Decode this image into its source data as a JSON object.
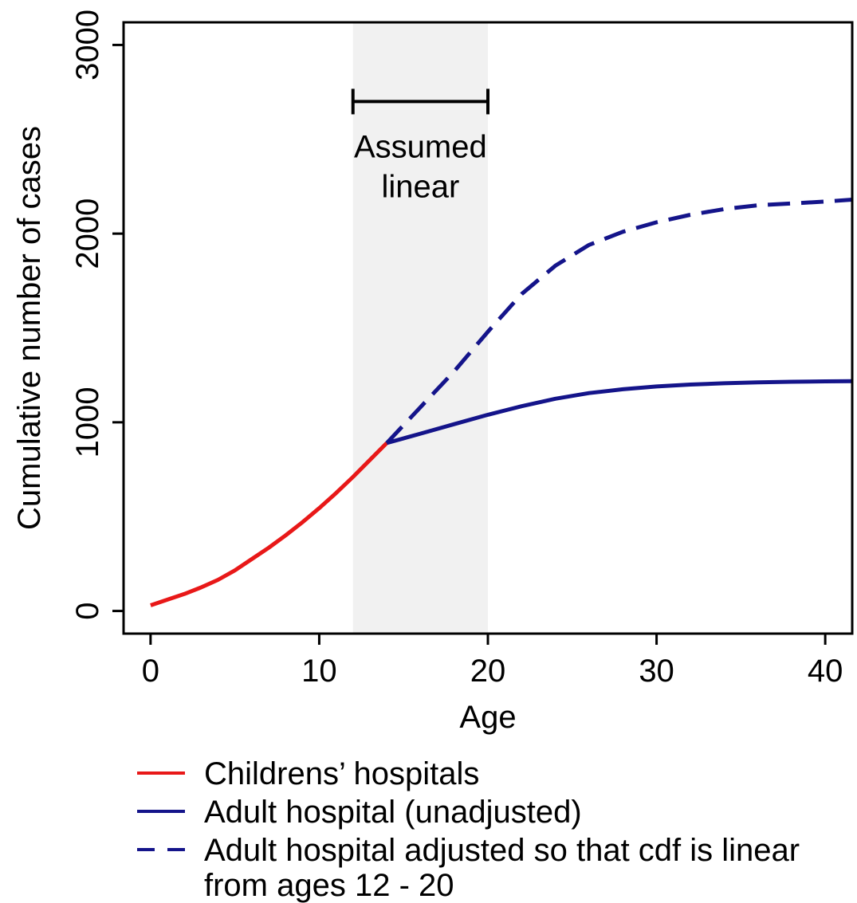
{
  "chart_data": {
    "type": "line",
    "title": "",
    "xlabel": "Age",
    "ylabel": "Cumulative number of cases",
    "xlim": [
      -1.6,
      41.6
    ],
    "ylim": [
      -120,
      3120
    ],
    "x_ticks": [
      0,
      10,
      20,
      30,
      40
    ],
    "y_ticks": [
      0,
      1000,
      2000,
      3000
    ],
    "grid": false,
    "shaded_region": {
      "x_start": 12,
      "x_end": 20,
      "color": "#f1f1f1"
    },
    "annotation": {
      "lines": [
        "Assumed",
        "linear"
      ],
      "bracket_x": [
        12,
        20
      ],
      "bracket_y": 2700
    },
    "series": [
      {
        "name": "Childrens’ hospitals",
        "color": "#e81818",
        "dash": "solid",
        "x": [
          0,
          1,
          2,
          3,
          4,
          5,
          6,
          7,
          8,
          9,
          10,
          11,
          12,
          13,
          14
        ],
        "y": [
          30,
          60,
          90,
          125,
          165,
          215,
          275,
          335,
          400,
          470,
          545,
          625,
          710,
          800,
          890
        ]
      },
      {
        "name": "Adult hospital (unadjusted)",
        "color": "#14148a",
        "dash": "solid",
        "x": [
          14,
          16,
          18,
          20,
          22,
          24,
          26,
          28,
          30,
          32,
          34,
          36,
          38,
          40,
          41.6
        ],
        "y": [
          890,
          940,
          990,
          1040,
          1085,
          1125,
          1155,
          1175,
          1190,
          1200,
          1207,
          1212,
          1215,
          1217,
          1218
        ]
      },
      {
        "name": "Adult hospital adjusted so that cdf is linear from ages 12 - 20",
        "color": "#14148a",
        "dash": "dashed",
        "x": [
          14,
          16,
          18,
          20,
          22,
          24,
          26,
          28,
          30,
          32,
          34,
          36,
          38,
          40,
          41.6
        ],
        "y": [
          890,
          1080,
          1270,
          1480,
          1680,
          1830,
          1940,
          2010,
          2060,
          2100,
          2130,
          2150,
          2160,
          2170,
          2180
        ]
      }
    ],
    "legend": {
      "placement": "bottom",
      "entries": [
        {
          "lines": [
            "Childrens’ hospitals"
          ],
          "color": "#e81818",
          "dash": "solid"
        },
        {
          "lines": [
            "Adult hospital (unadjusted)"
          ],
          "color": "#14148a",
          "dash": "solid"
        },
        {
          "lines": [
            "Adult hospital adjusted so that cdf is linear",
            "from ages 12 - 20"
          ],
          "color": "#14148a",
          "dash": "dashed"
        }
      ]
    }
  }
}
